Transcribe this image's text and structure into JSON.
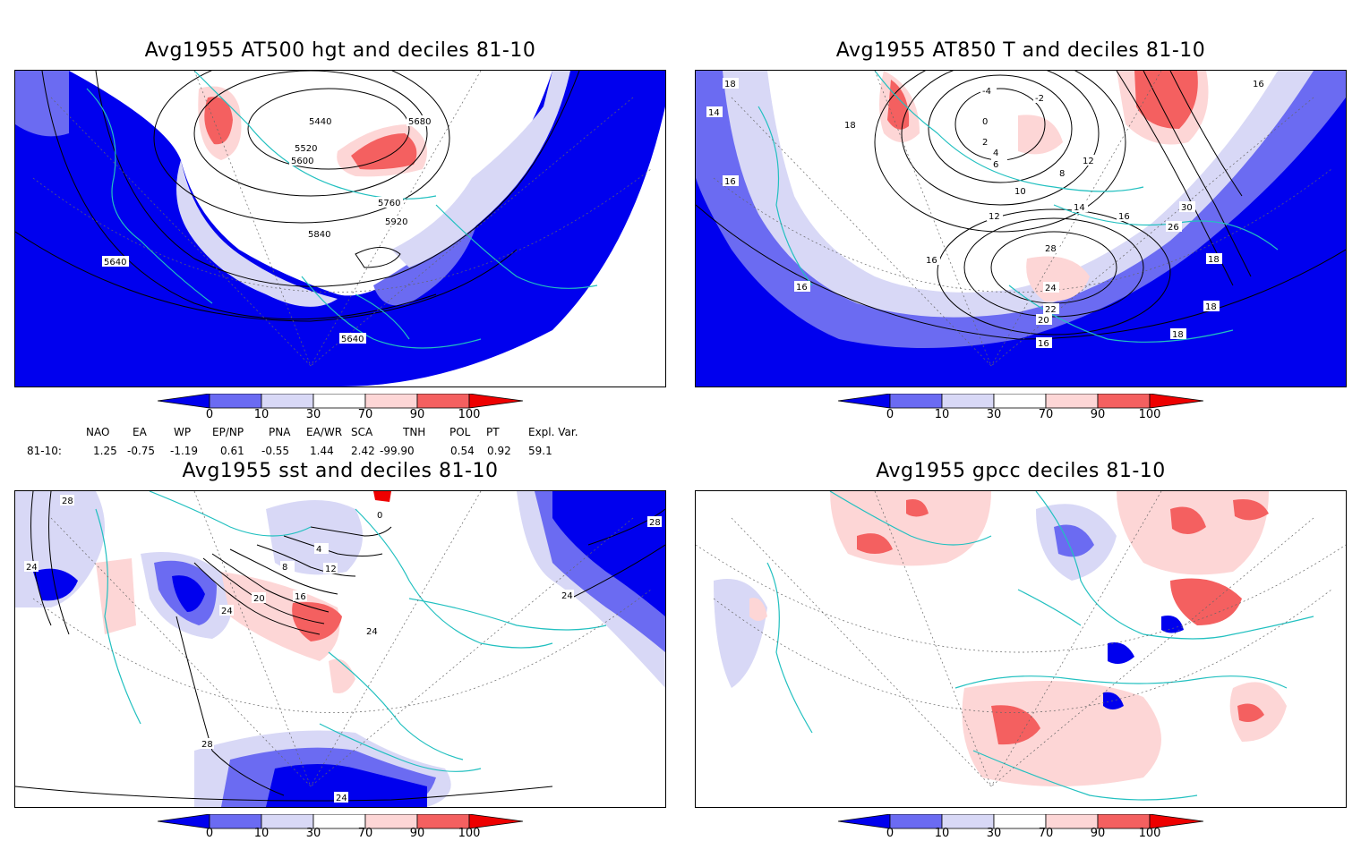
{
  "colors": {
    "very_low": "#0000ee",
    "low": "#6b6bf2",
    "below": "#d8d8f6",
    "normal": "#ffffff",
    "above": "#fdd6d6",
    "high": "#f46060",
    "very_high": "#ee0000",
    "coast": "#22c0c0",
    "contour": "#000000"
  },
  "panels": {
    "hgt": {
      "title": "Avg1955 AT500 hgt and deciles 81-10",
      "contour_labels": [
        "5440",
        "5680",
        "5520",
        "5600",
        "5760",
        "5840",
        "5920",
        "5640",
        "5640"
      ]
    },
    "t850": {
      "title": "Avg1955 AT850 T and deciles 81-10",
      "contour_labels": [
        "14",
        "18",
        "16",
        "16",
        "16",
        "16",
        "18",
        "18",
        "18",
        "16",
        "12",
        "10",
        "8",
        "6",
        "4",
        "2",
        "0",
        "-2",
        "-4",
        "24",
        "22",
        "20",
        "28",
        "26",
        "30",
        "18",
        "16",
        "14",
        "12"
      ]
    },
    "sst": {
      "title": "Avg1955 sst and deciles 81-10",
      "contour_labels": [
        "28",
        "24",
        "28",
        "24",
        "20",
        "16",
        "12",
        "8",
        "4",
        "0",
        "24",
        "24",
        "28",
        "24"
      ]
    },
    "gpcc": {
      "title": "Avg1955 gpcc deciles 81-10"
    }
  },
  "colorbar": {
    "ticks": [
      "0",
      "10",
      "30",
      "70",
      "90",
      "100"
    ]
  },
  "indices": {
    "headers": [
      "NAO",
      "EA",
      "WP",
      "EP/NP",
      "PNA",
      "EA/WR",
      "SCA",
      "TNH",
      "POL",
      "PT",
      "Expl. Var."
    ],
    "row_label": "81-10:",
    "values": [
      "1.25",
      "-0.75",
      "-1.19",
      "0.61",
      "-0.55",
      "1.44",
      "2.42",
      "-99.90",
      "0.54",
      "0.92",
      "59.1"
    ]
  }
}
